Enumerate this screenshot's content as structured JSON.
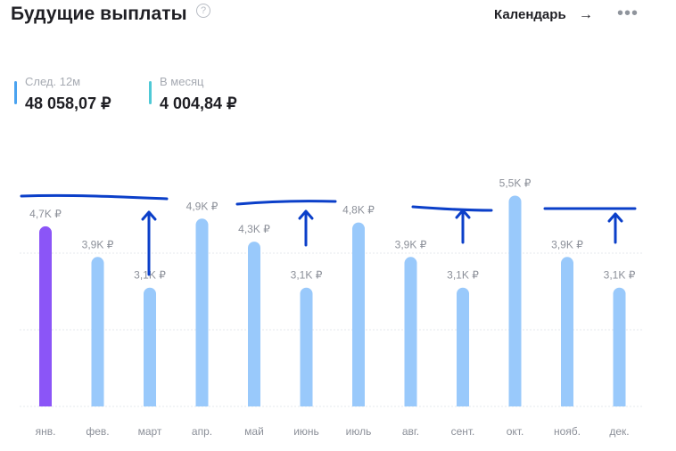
{
  "header": {
    "title": "Будущие выплаты",
    "help_icon": "?",
    "calendar_label": "Календарь",
    "arrow_icon": "→",
    "more_icon": "•••"
  },
  "stats": [
    {
      "label": "След. 12м",
      "value": "48 058,07 ₽",
      "color": "#4aa3f0"
    },
    {
      "label": "В месяц",
      "value": "4 004,84 ₽",
      "color": "#4fc9d6"
    }
  ],
  "colors": {
    "highlight_bar": "#8b55f7",
    "bar": "#99c9fb",
    "grid": "#e6e8ec",
    "annotation": "#0b3fc9"
  },
  "chart_data": {
    "type": "bar",
    "categories": [
      "янв.",
      "фев.",
      "март",
      "апр.",
      "май",
      "июнь",
      "июль",
      "авг.",
      "сент.",
      "окт.",
      "нояб.",
      "дек."
    ],
    "values": [
      4.7,
      3.9,
      3.1,
      4.9,
      4.3,
      3.1,
      4.8,
      3.9,
      3.1,
      5.5,
      3.9,
      3.1
    ],
    "value_labels": [
      "4,7K ₽",
      "3,9K ₽",
      "3,1K ₽",
      "4,9K ₽",
      "4,3K ₽",
      "3,1K ₽",
      "4,8K ₽",
      "3,9K ₽",
      "3,1K ₽",
      "5,5K ₽",
      "3,9K ₽",
      "3,1K ₽"
    ],
    "highlight_index": 0,
    "ylim": [
      0,
      6
    ],
    "grid": true,
    "title": "",
    "xlabel": "",
    "ylabel": ""
  }
}
